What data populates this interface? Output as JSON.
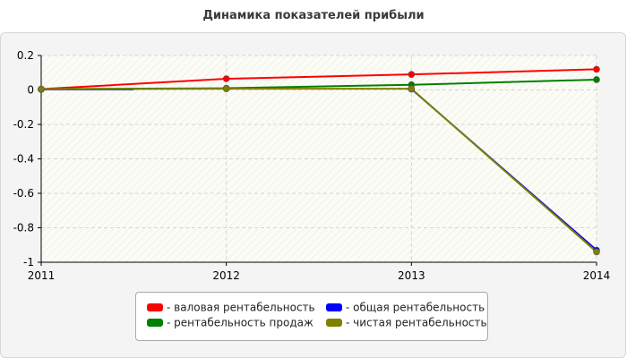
{
  "chart_data": {
    "type": "line",
    "title": "Динамика показателей прибыли",
    "x": [
      "2011",
      "2012",
      "2013",
      "2014"
    ],
    "ylim": [
      -1,
      0.2
    ],
    "yticks": [
      "0.2",
      "0",
      "-0.2",
      "-0.4",
      "-0.6",
      "-0.8",
      "-1"
    ],
    "grid": true,
    "legend_position": "bottom",
    "series": [
      {
        "name": "- валовая рентабельность",
        "color": "#ff0000",
        "values": [
          0.005,
          0.065,
          0.09,
          0.12
        ]
      },
      {
        "name": "- общая рентабельность",
        "color": "#0000ff",
        "values": [
          0.003,
          null,
          0.005,
          -0.93
        ],
        "partial_segment": {
          "from_x": 2011,
          "to_x": 2011.5,
          "y": 0.003
        }
      },
      {
        "name": "- рентабельность продаж",
        "color": "#008000",
        "values": [
          0.005,
          0.01,
          0.03,
          0.06
        ]
      },
      {
        "name": "- чистая рентабельность",
        "color": "#808000",
        "values": [
          0.005,
          0.007,
          0.007,
          -0.94
        ]
      }
    ]
  }
}
